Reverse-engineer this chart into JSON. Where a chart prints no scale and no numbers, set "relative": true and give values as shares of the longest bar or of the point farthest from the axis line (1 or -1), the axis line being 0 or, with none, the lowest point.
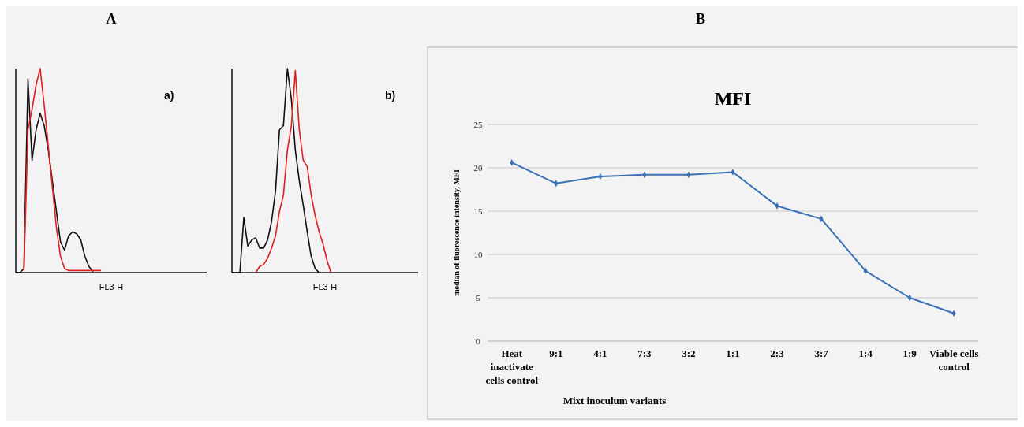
{
  "chart_data": [
    {
      "type": "line",
      "title": "A",
      "xlabel": "FL3-H",
      "annotations": [
        "a)"
      ],
      "relative": true,
      "grid": false,
      "categories": [
        null,
        null,
        null,
        null,
        null,
        null,
        null,
        null,
        null,
        null,
        null,
        null,
        null,
        null,
        null,
        null,
        null,
        null,
        null,
        null,
        null,
        null,
        null,
        null,
        null,
        null,
        null,
        null,
        null,
        null,
        null,
        null,
        null,
        null,
        null,
        null,
        null,
        null,
        null,
        null,
        null,
        null,
        null,
        null,
        null,
        null,
        null,
        null
      ],
      "series": [
        {
          "color": "#111111",
          "values": [
            0,
            0,
            0.02,
            0.95,
            0.55,
            0.7,
            0.78,
            0.72,
            0.6,
            0.45,
            0.3,
            0.15,
            0.11,
            0.18,
            0.2,
            0.19,
            0.16,
            0.08,
            0.03,
            0.005,
            null,
            null,
            null,
            null,
            null,
            null,
            null,
            null,
            null,
            null,
            null,
            null,
            null,
            null,
            null,
            null,
            null,
            null,
            null,
            null,
            null,
            null,
            null,
            null,
            null,
            null,
            null,
            null
          ]
        },
        {
          "color": "#e0201e",
          "values": [
            null,
            null,
            0.01,
            0.7,
            0.8,
            0.92,
            1,
            0.82,
            0.62,
            0.42,
            0.22,
            0.08,
            0.02,
            0.01,
            0.01,
            0.01,
            0.01,
            0.01,
            0.01,
            0.01,
            0.01,
            0.01,
            null,
            null,
            null,
            null,
            null,
            null,
            null,
            null,
            null,
            null,
            null,
            null,
            null,
            null,
            null,
            null,
            null,
            null,
            null,
            null,
            null,
            null,
            null,
            null,
            null,
            null
          ]
        }
      ]
    },
    {
      "type": "line",
      "xlabel": "FL3-H",
      "annotations": [
        "b)"
      ],
      "relative": true,
      "grid": false,
      "categories": [
        null,
        null,
        null,
        null,
        null,
        null,
        null,
        null,
        null,
        null,
        null,
        null,
        null,
        null,
        null,
        null,
        null,
        null,
        null,
        null,
        null,
        null,
        null,
        null,
        null,
        null,
        null,
        null,
        null,
        null,
        null,
        null,
        null,
        null,
        null,
        null,
        null,
        null,
        null,
        null,
        null,
        null,
        null,
        null,
        null,
        null,
        null,
        null
      ],
      "series": [
        {
          "color": "#111111",
          "values": [
            0,
            0,
            0,
            0.27,
            0.13,
            0.16,
            0.17,
            0.12,
            0.12,
            0.16,
            0.25,
            0.4,
            0.7,
            0.72,
            1,
            0.85,
            0.6,
            0.45,
            0.33,
            0.2,
            0.08,
            0.02,
            0,
            null,
            null,
            null,
            null,
            null,
            null,
            null,
            null,
            null,
            null,
            null,
            null,
            null,
            null,
            null,
            null,
            null,
            null,
            null,
            null,
            null,
            null,
            null,
            null,
            null
          ]
        },
        {
          "color": "#e0201e",
          "values": [
            null,
            null,
            null,
            null,
            null,
            null,
            0,
            0.03,
            0.04,
            0.07,
            0.12,
            0.18,
            0.3,
            0.38,
            0.6,
            0.72,
            0.99,
            0.7,
            0.55,
            0.52,
            0.38,
            0.28,
            0.2,
            0.14,
            0.06,
            0,
            null,
            null,
            null,
            null,
            null,
            null,
            null,
            null,
            null,
            null,
            null,
            null,
            null,
            null,
            null,
            null,
            null,
            null,
            null,
            null,
            null,
            null
          ]
        }
      ]
    },
    {
      "type": "line",
      "title": "B",
      "subtitle": "MFI",
      "xlabel": "Mixt inoculum variants",
      "ylabel": "median of fluorescence intensity, MFI",
      "grid": "y",
      "marker": "diamond",
      "categories": [
        "Heat inactivate cells control",
        "9:1",
        "4:1",
        "7:3",
        "3:2",
        "1:1",
        "2:3",
        "3:7",
        "1:4",
        "1:9",
        "Viable cells control"
      ],
      "ylim": [
        0,
        25
      ],
      "yticks": [
        0,
        5,
        10,
        15,
        20,
        25
      ],
      "series": [
        {
          "color": "#3a72b5",
          "values": [
            20.6,
            18.2,
            19.0,
            19.2,
            19.2,
            19.5,
            15.6,
            14.1,
            8.1,
            5.0,
            3.2
          ]
        }
      ]
    }
  ]
}
